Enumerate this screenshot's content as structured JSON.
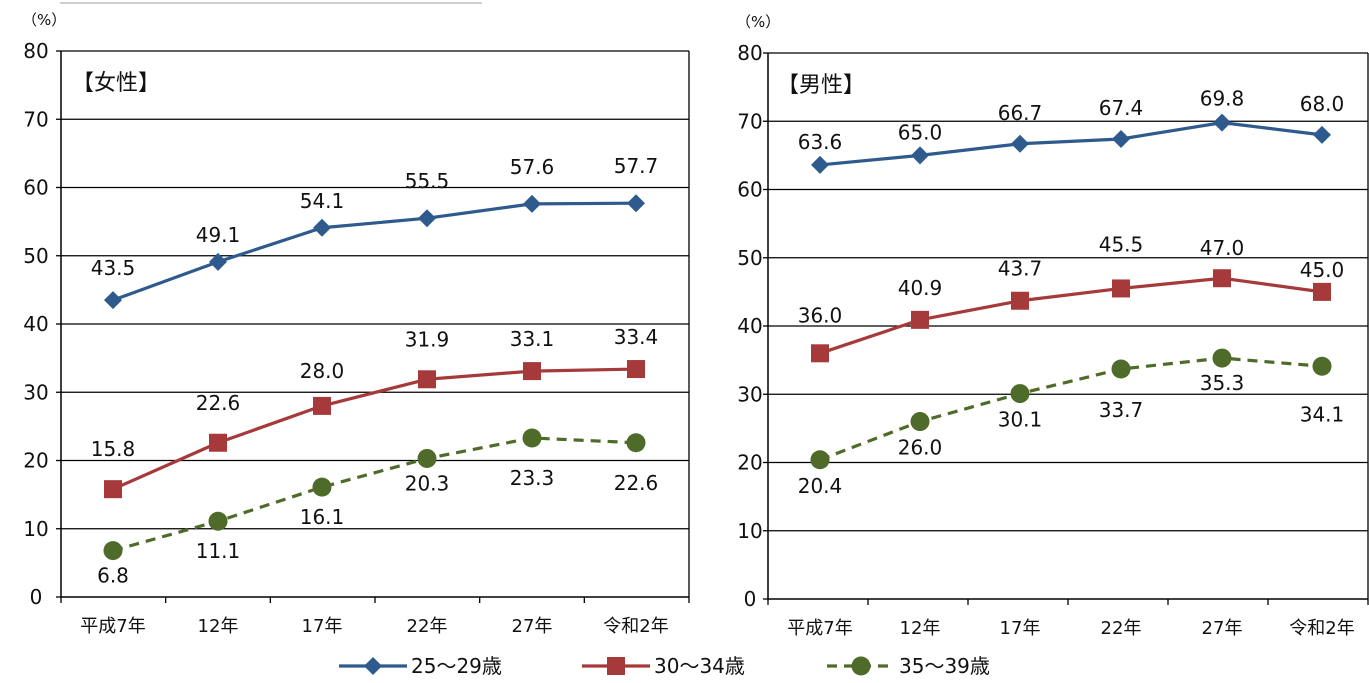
{
  "chart_data": [
    {
      "type": "line",
      "title": "【女性】",
      "unit": "（%）",
      "ylim": [
        0,
        80
      ],
      "yticks": [
        "0",
        "10",
        "20",
        "30",
        "40",
        "50",
        "60",
        "70",
        "80"
      ],
      "categories": [
        "平成7年",
        "12年",
        "17年",
        "22年",
        "27年",
        "令和2年"
      ],
      "grid": true,
      "series": [
        {
          "name": "25〜29歳",
          "color": "#2E5A8E",
          "marker": "diamond",
          "dash": false,
          "values": [
            43.5,
            49.1,
            54.1,
            55.5,
            57.6,
            57.7
          ],
          "labels": [
            "43.5",
            "49.1",
            "54.1",
            "55.5",
            "57.6",
            "57.7"
          ]
        },
        {
          "name": "30〜34歳",
          "color": "#A63A3A",
          "marker": "square",
          "dash": false,
          "values": [
            15.8,
            22.6,
            28.0,
            31.9,
            33.1,
            33.4
          ],
          "labels": [
            "15.8",
            "22.6",
            "28.0",
            "31.9",
            "33.1",
            "33.4"
          ]
        },
        {
          "name": "35〜39歳",
          "color": "#4F6B2A",
          "marker": "circle",
          "dash": true,
          "values": [
            6.8,
            11.1,
            16.1,
            20.3,
            23.3,
            22.6
          ],
          "labels": [
            "6.8",
            "11.1",
            "16.1",
            "20.3",
            "23.3",
            "22.6"
          ]
        }
      ]
    },
    {
      "type": "line",
      "title": "【男性】",
      "unit": "（%）",
      "ylim": [
        0,
        80
      ],
      "yticks": [
        "0",
        "10",
        "20",
        "30",
        "40",
        "50",
        "60",
        "70",
        "80"
      ],
      "categories": [
        "平成7年",
        "12年",
        "17年",
        "22年",
        "27年",
        "令和2年"
      ],
      "grid": true,
      "series": [
        {
          "name": "25〜29歳",
          "color": "#2E5A8E",
          "marker": "diamond",
          "dash": false,
          "values": [
            63.6,
            65.0,
            66.7,
            67.4,
            69.8,
            68.0
          ],
          "labels": [
            "63.6",
            "65.0",
            "66.7",
            "67.4",
            "69.8",
            "68.0"
          ]
        },
        {
          "name": "30〜34歳",
          "color": "#A63A3A",
          "marker": "square",
          "dash": false,
          "values": [
            36.0,
            40.9,
            43.7,
            45.5,
            47.0,
            45.0
          ],
          "labels": [
            "36.0",
            "40.9",
            "43.7",
            "45.5",
            "47.0",
            "45.0"
          ]
        },
        {
          "name": "35〜39歳",
          "color": "#4F6B2A",
          "marker": "circle",
          "dash": true,
          "values": [
            20.4,
            26.0,
            30.1,
            33.7,
            35.3,
            34.1
          ],
          "labels": [
            "20.4",
            "26.0",
            "30.1",
            "33.7",
            "35.3",
            "34.1"
          ]
        }
      ]
    }
  ],
  "legend": {
    "placement": "bottom",
    "items": [
      {
        "label": "25〜29歳",
        "color": "#2E5A8E",
        "marker": "diamond",
        "dash": false
      },
      {
        "label": "30〜34歳",
        "color": "#A63A3A",
        "marker": "square",
        "dash": false
      },
      {
        "label": "35〜39歳",
        "color": "#4F6B2A",
        "marker": "circle",
        "dash": true
      }
    ]
  }
}
